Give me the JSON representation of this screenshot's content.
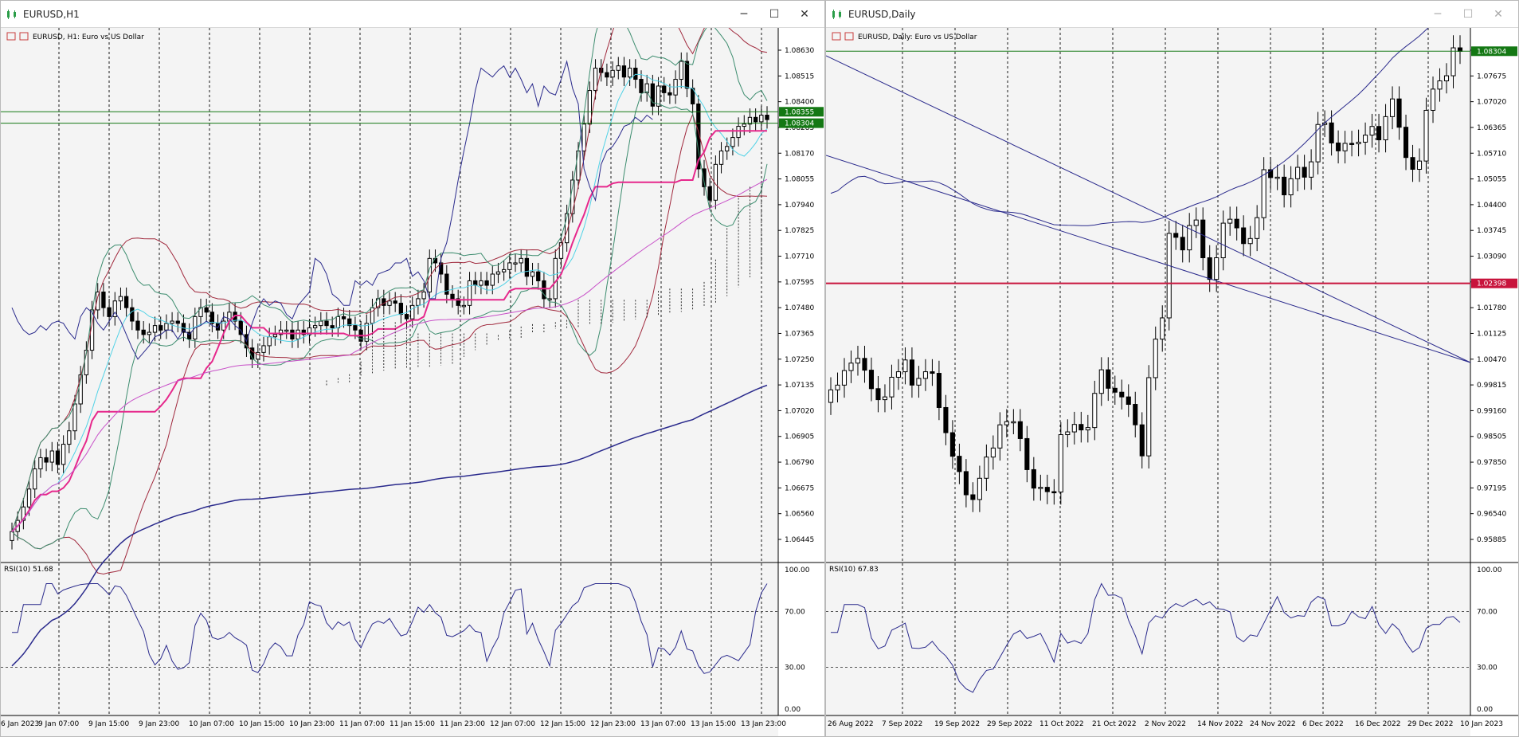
{
  "windows": [
    {
      "title": "EURUSD,H1",
      "chart_header": "EURUSD, H1:  Euro vs US Dollar",
      "price_labels": [
        "1.08630",
        "1.08515",
        "1.08400",
        "1.08285",
        "1.08170",
        "1.08055",
        "1.07940",
        "1.07825",
        "1.07710",
        "1.07595",
        "1.07480",
        "1.07365",
        "1.07250",
        "1.07135",
        "1.07020",
        "1.06905",
        "1.06790",
        "1.06675",
        "1.06560",
        "1.06445"
      ],
      "current_price_tags": [
        {
          "text": "1.08355",
          "color": "#147814"
        },
        {
          "text": "1.08304",
          "color": "#147814"
        }
      ],
      "time_labels": [
        "6 Jan 2023",
        "9 Jan 07:00",
        "9 Jan 15:00",
        "9 Jan 23:00",
        "10 Jan 07:00",
        "10 Jan 15:00",
        "10 Jan 23:00",
        "11 Jan 07:00",
        "11 Jan 15:00",
        "11 Jan 23:00",
        "12 Jan 07:00",
        "12 Jan 15:00",
        "12 Jan 23:00",
        "13 Jan 07:00",
        "13 Jan 15:00",
        "13 Jan 23:00"
      ],
      "rsi_label": "RSI(10) 51.68",
      "rsi_levels": [
        "100.00",
        "70.00",
        "30.00",
        "0.00"
      ]
    },
    {
      "title": "EURUSD,Daily",
      "chart_header": "EURUSD, Daily:  Euro vs US Dollar",
      "price_labels": [
        "1.08330",
        "1.07675",
        "1.07020",
        "1.06365",
        "1.05710",
        "1.05055",
        "1.04400",
        "1.03745",
        "1.03090",
        "1.02435",
        "1.01780",
        "1.01125",
        "1.00470",
        "0.99815",
        "0.99160",
        "0.98505",
        "0.97850",
        "0.97195",
        "0.96540",
        "0.95885"
      ],
      "current_price_tags": [
        {
          "text": "1.08304",
          "color": "#147814"
        },
        {
          "text": "1.02398",
          "color": "#c8143c"
        }
      ],
      "time_labels": [
        "26 Aug 2022",
        "7 Sep 2022",
        "19 Sep 2022",
        "29 Sep 2022",
        "11 Oct 2022",
        "21 Oct 2022",
        "2 Nov 2022",
        "14 Nov 2022",
        "24 Nov 2022",
        "6 Dec 2022",
        "16 Dec 2022",
        "29 Dec 2022",
        "10 Jan 2023"
      ],
      "rsi_label": "RSI(10) 67.83",
      "rsi_levels": [
        "100.00",
        "70.00",
        "30.00",
        "0.00"
      ]
    }
  ],
  "colors": {
    "background": "#f4f4f4",
    "grid": "#1a1a1a",
    "candle": "#000000",
    "bb_red": "#a0283c",
    "bb_teal": "#3c8c6e",
    "tenkan": "#50d2e6",
    "kijun": "#e6288c",
    "navy": "#2a2a8c",
    "magenta": "#c850c8",
    "support_red": "#c8143c",
    "price_tag_green": "#147814"
  },
  "series": {
    "h1_close": [
      1.0648,
      1.0653,
      1.0659,
      1.0667,
      1.0676,
      1.0681,
      1.0679,
      1.0684,
      1.0678,
      1.0687,
      1.0693,
      1.0705,
      1.0718,
      1.0729,
      1.0747,
      1.0755,
      1.0748,
      1.0744,
      1.0751,
      1.0753,
      1.0748,
      1.0742,
      1.0738,
      1.0736,
      1.0737,
      1.074,
      1.0738,
      1.0741,
      1.0742,
      1.0741,
      1.0737,
      1.0734,
      1.0744,
      1.0748,
      1.0746,
      1.0741,
      1.0738,
      1.0742,
      1.0746,
      1.0742,
      1.0736,
      1.073,
      1.0725,
      1.0728,
      1.0731,
      1.0735,
      1.0736,
      1.0738,
      1.0738,
      1.0734,
      1.0738,
      1.0736,
      1.0739,
      1.074,
      1.0742,
      1.074,
      1.0739,
      1.0744,
      1.0743,
      1.074,
      1.0738,
      1.0733,
      1.0741,
      1.0748,
      1.0752,
      1.0749,
      1.0751,
      1.075,
      1.0745,
      1.0743,
      1.0749,
      1.0752,
      1.0755,
      1.077,
      1.0768,
      1.0763,
      1.0754,
      1.0752,
      1.0749,
      1.0749,
      1.076,
      1.0758,
      1.076,
      1.0758,
      1.0763,
      1.0764,
      1.0765,
      1.0768,
      1.0768,
      1.077,
      1.0762,
      1.0764,
      1.076,
      1.0752,
      1.0752,
      1.077,
      1.0777,
      1.079,
      1.0805,
      1.0818,
      1.083,
      1.0845,
      1.0855,
      1.0853,
      1.0851,
      1.0854,
      1.0856,
      1.0851,
      1.0855,
      1.085,
      1.0844,
      1.0848,
      1.0838,
      1.0847,
      1.0844,
      1.0843,
      1.085,
      1.0858,
      1.0846,
      1.0839,
      1.081,
      1.0802,
      1.0796,
      1.0812,
      1.0818,
      1.082,
      1.0824,
      1.0829,
      1.083,
      1.0833,
      1.0831,
      1.0834,
      1.0832
    ],
    "d1_close": [
      0.9969,
      0.9981,
      1.0018,
      1.0037,
      1.0049,
      1.0019,
      0.9972,
      0.9944,
      0.9951,
      1.0001,
      1.0015,
      1.0045,
      0.9981,
      0.9998,
      1.0015,
      1.0011,
      0.9924,
      0.986,
      0.98,
      0.9761,
      0.9702,
      0.969,
      0.9744,
      0.9798,
      0.9821,
      0.988,
      0.9888,
      0.9888,
      0.9845,
      0.9766,
      0.9719,
      0.9721,
      0.971,
      0.9709,
      0.9855,
      0.9862,
      0.9881,
      0.9867,
      0.9873,
      0.996,
      1.002,
      0.9973,
      0.9963,
      0.9951,
      0.9932,
      0.988,
      0.9801,
      1.0,
      1.0098,
      1.0152,
      1.0367,
      1.0357,
      1.0325,
      1.0387,
      1.0401,
      1.0305,
      1.025,
      1.0305,
      1.0393,
      1.0403,
      1.0381,
      1.0341,
      1.0354,
      1.0407,
      1.0529,
      1.0509,
      1.051,
      1.0465,
      1.0506,
      1.0535,
      1.051,
      1.0549,
      1.0644,
      1.0648,
      1.0597,
      1.0577,
      1.0596,
      1.0595,
      1.0599,
      1.0617,
      1.0639,
      1.0605,
      1.0664,
      1.0709,
      1.0637,
      1.056,
      1.053,
      1.0551,
      1.068,
      1.0734,
      1.0755,
      1.0768,
      1.0839,
      1.083
    ]
  }
}
